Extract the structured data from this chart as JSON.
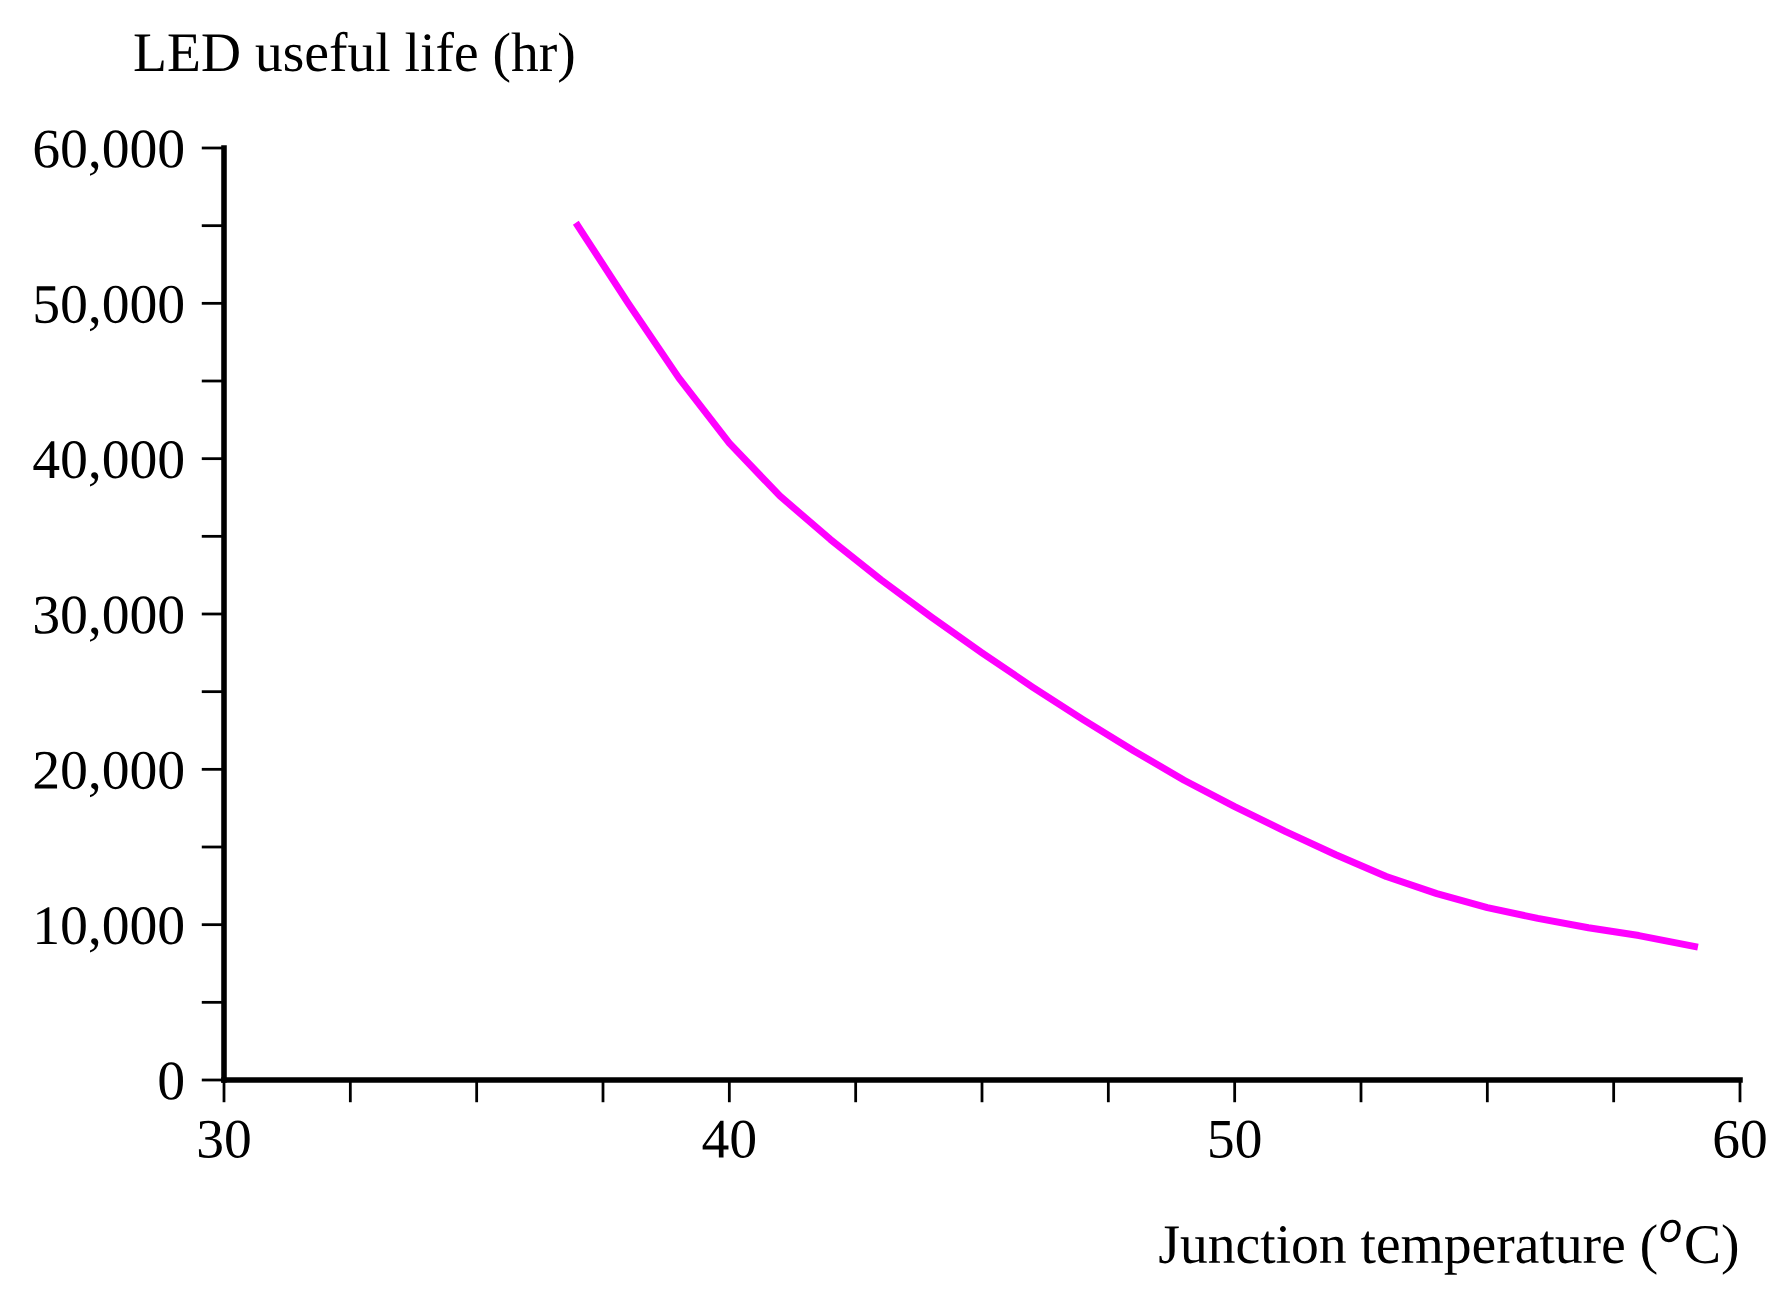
{
  "chart_data": {
    "type": "line",
    "ylabel": "LED useful life (hr)",
    "xlabel": "Junction temperature ($^{o}$C)",
    "series": [
      {
        "color": "#ff00ff",
        "x": [
          37,
          38,
          39,
          40,
          41,
          42,
          43,
          44,
          45,
          46,
          47,
          48,
          49,
          50,
          51,
          52,
          53,
          54,
          55,
          56,
          57,
          58,
          59.1
        ],
        "values": [
          55000,
          50000,
          45200,
          41000,
          37600,
          34800,
          32200,
          29800,
          27500,
          25300,
          23200,
          21200,
          19300,
          17600,
          16000,
          14500,
          13100,
          12000,
          11100,
          10400,
          9800,
          9300,
          8600
        ]
      }
    ],
    "xlim": [
      30,
      60
    ],
    "ylim": [
      0,
      60000
    ],
    "xticks": [
      30,
      {
        "value": 32.5,
        "label": null
      },
      {
        "value": 35,
        "label": null
      },
      {
        "value": 37.5,
        "label": null
      },
      40,
      {
        "value": 42.5,
        "label": null
      },
      {
        "value": 45,
        "label": null
      },
      {
        "value": 47.5,
        "label": null
      },
      50,
      {
        "value": 52.5,
        "label": null
      },
      {
        "value": 55,
        "label": null
      },
      {
        "value": 57.5,
        "label": null
      },
      60
    ],
    "yticks": [
      {
        "value": 0,
        "label": "0"
      },
      {
        "value": 5000,
        "label": null
      },
      {
        "value": 10000,
        "label": "10,000"
      },
      {
        "value": 15000,
        "label": null
      },
      {
        "value": 20000,
        "label": "20,000"
      },
      {
        "value": 25000,
        "label": null
      },
      {
        "value": 30000,
        "label": "30,000"
      },
      {
        "value": 35000,
        "label": null
      },
      {
        "value": 40000,
        "label": "40,000"
      },
      {
        "value": 45000,
        "label": null
      },
      {
        "value": 50000,
        "label": "50,000"
      },
      {
        "value": 55000,
        "label": null
      },
      {
        "value": 60000,
        "label": "60,000"
      }
    ],
    "grid": false,
    "legend": false,
    "marker": "none",
    "line_style": "solid"
  }
}
